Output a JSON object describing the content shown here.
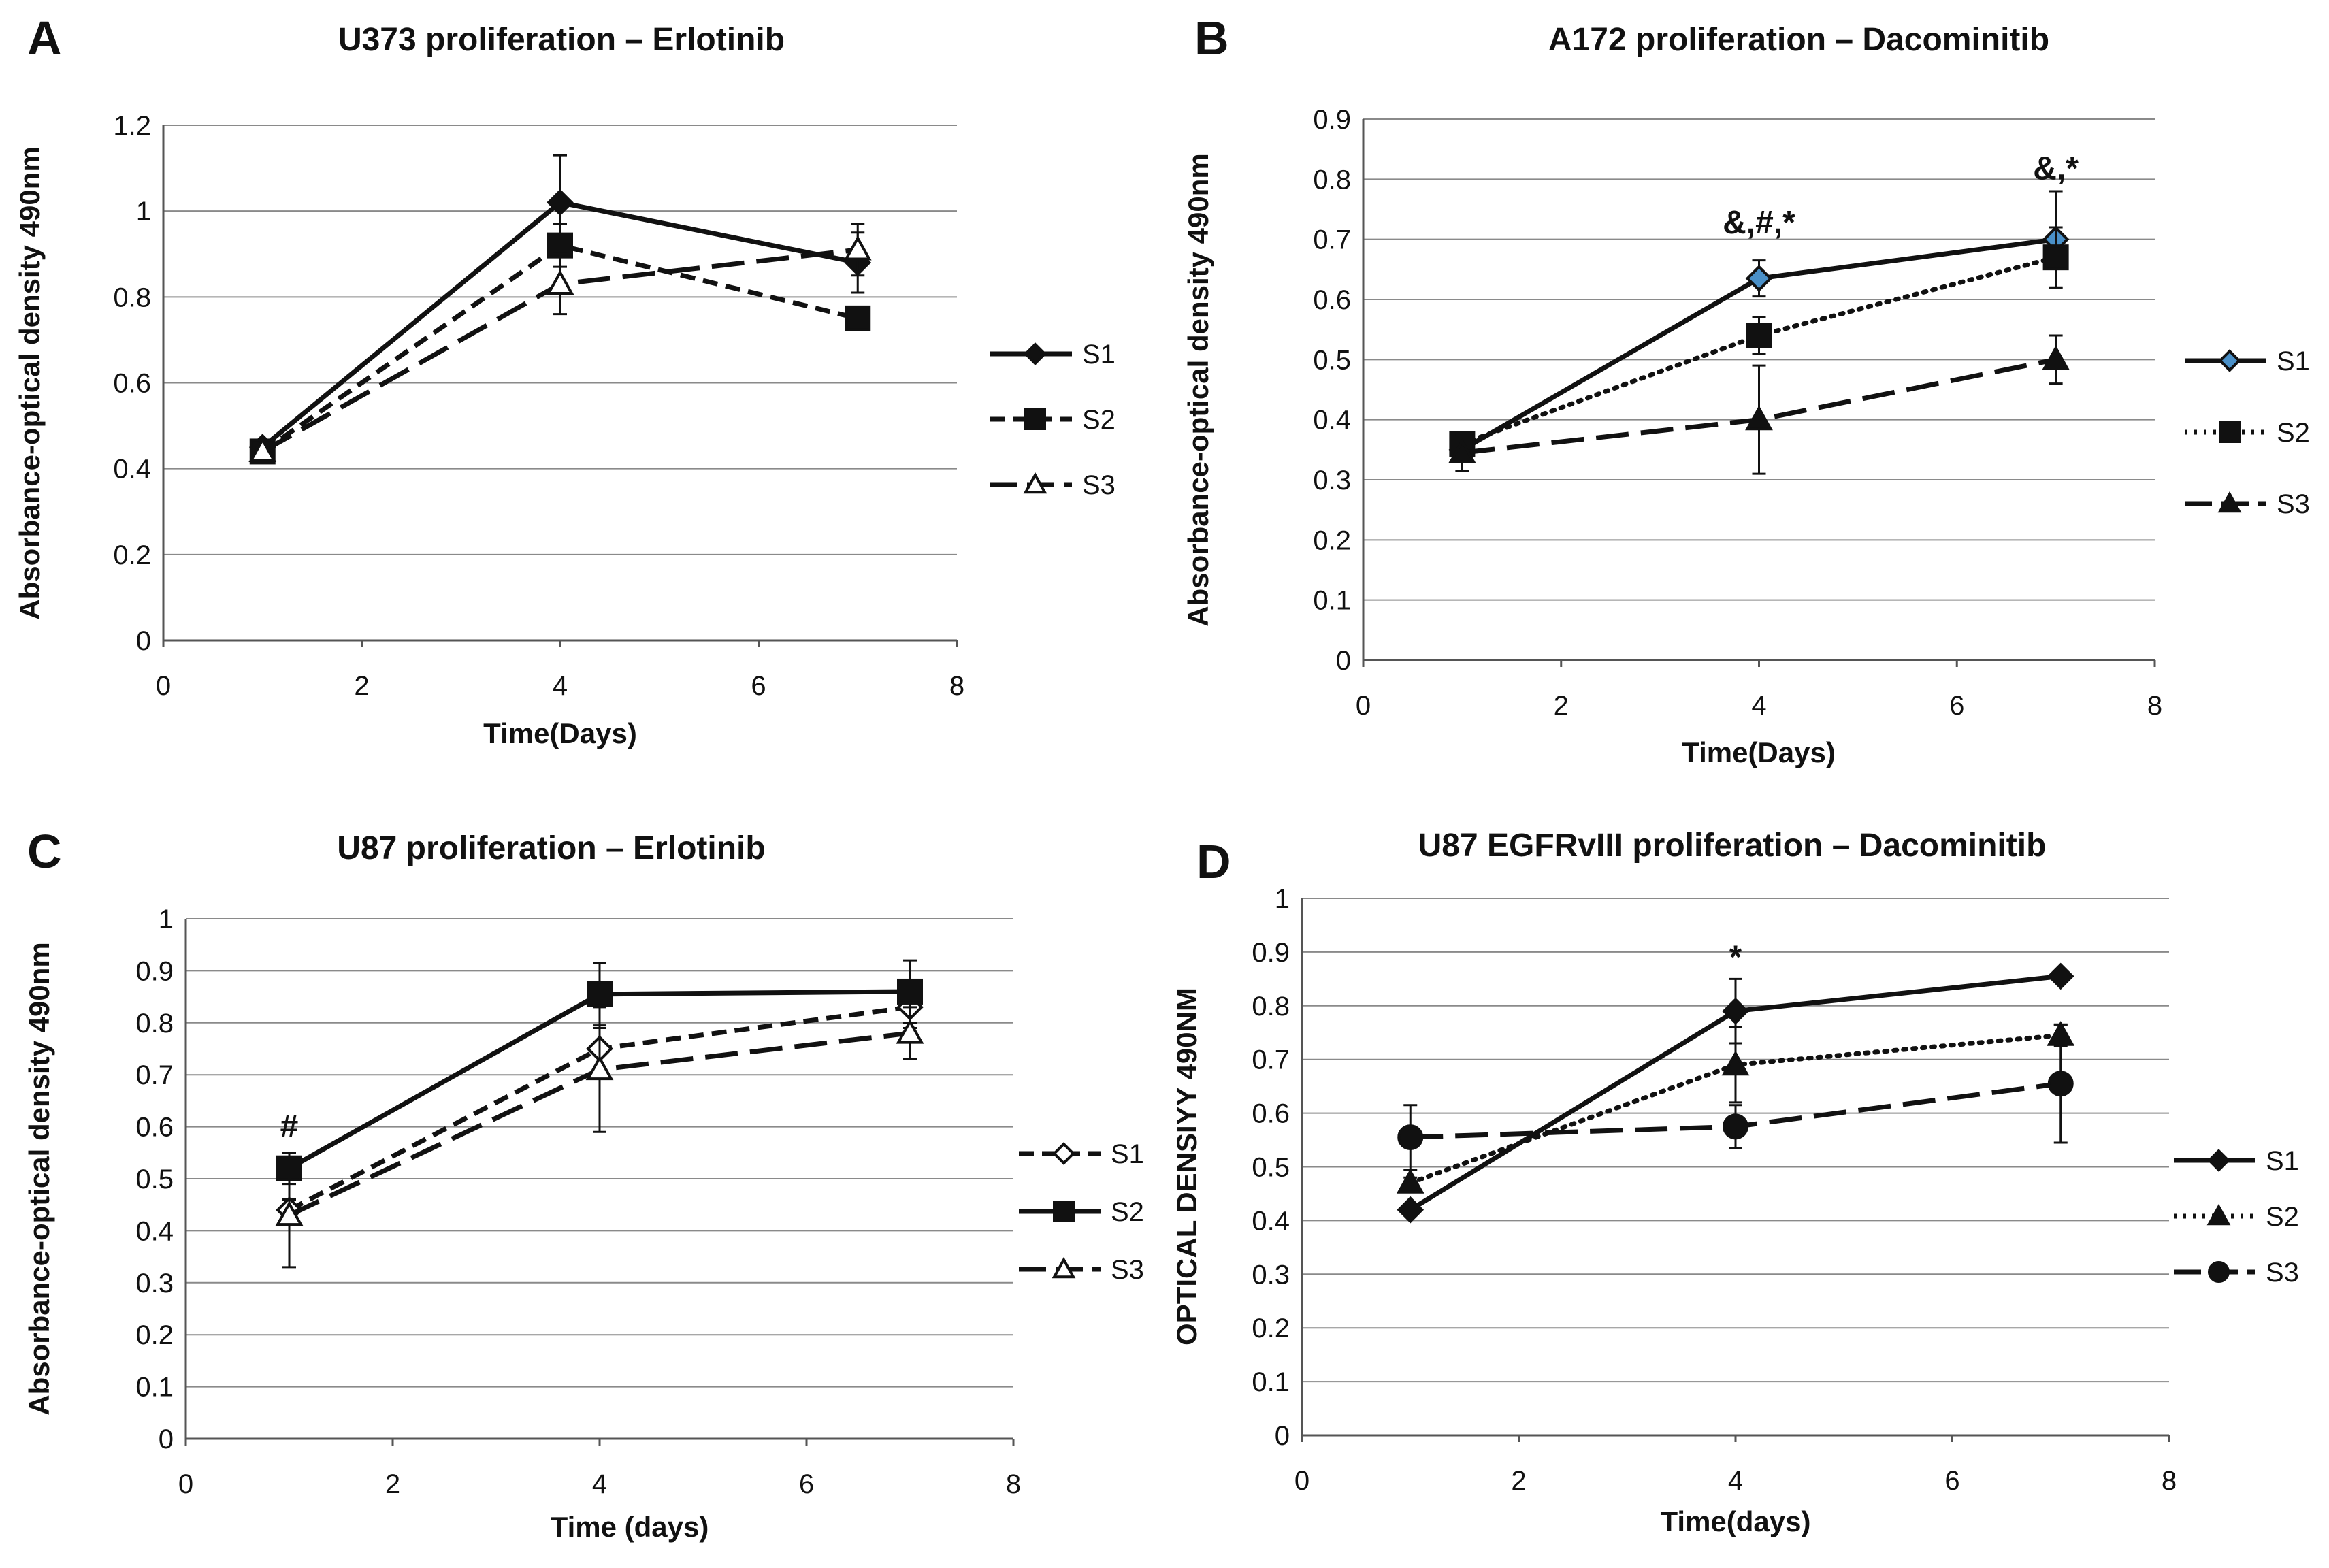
{
  "chart_data": [
    {
      "panel": "A",
      "type": "line",
      "title": "U373 proliferation – Erlotinib",
      "xlabel": "Time(Days)",
      "ylabel": "Absorbance-optical density 490nm",
      "xlim": [
        0,
        8
      ],
      "ylim": [
        0,
        1.2
      ],
      "xticks": [
        "0",
        "2",
        "4",
        "6",
        "8"
      ],
      "yticks": [
        "0",
        "0.2",
        "0.4",
        "0.6",
        "0.8",
        "1",
        "1.2"
      ],
      "grid": "horizontal",
      "legend_position": "right",
      "x": [
        1,
        4,
        7
      ],
      "series": [
        {
          "name": "S1",
          "values": [
            0.45,
            1.02,
            0.88
          ],
          "err": [
            0.01,
            0.11,
            0.07
          ],
          "line": "solid",
          "marker": "diamond",
          "fill": "#111111"
        },
        {
          "name": "S2",
          "values": [
            0.44,
            0.92,
            0.75
          ],
          "err": [
            0.01,
            0.05,
            0.02
          ],
          "line": "dashed",
          "marker": "square",
          "fill": "#111111"
        },
        {
          "name": "S3",
          "values": [
            0.44,
            0.83,
            0.91
          ],
          "err": [
            0.01,
            0.07,
            0.06
          ],
          "line": "longdash",
          "marker": "triangle",
          "fill": "#ffffff"
        }
      ],
      "annotations": []
    },
    {
      "panel": "B",
      "type": "line",
      "title": "A172 proliferation – Dacominitib",
      "xlabel": "Time(Days)",
      "ylabel": "Absorbance-optical density 490nm",
      "xlim": [
        0,
        8
      ],
      "ylim": [
        0,
        0.9
      ],
      "xticks": [
        "0",
        "2",
        "4",
        "6",
        "8"
      ],
      "yticks": [
        "0",
        "0.1",
        "0.2",
        "0.3",
        "0.4",
        "0.5",
        "0.6",
        "0.7",
        "0.8",
        "0.9"
      ],
      "grid": "horizontal",
      "legend_position": "right",
      "x": [
        1,
        4,
        7
      ],
      "series": [
        {
          "name": "S1",
          "values": [
            0.35,
            0.635,
            0.7
          ],
          "err": [
            0.01,
            0.03,
            0.08
          ],
          "line": "solid",
          "marker": "diamond",
          "fill": "#4a90c8"
        },
        {
          "name": "S2",
          "values": [
            0.36,
            0.54,
            0.67
          ],
          "err": [
            0.01,
            0.03,
            0.05
          ],
          "line": "dotted",
          "marker": "square",
          "fill": "#111111"
        },
        {
          "name": "S3",
          "values": [
            0.345,
            0.4,
            0.5
          ],
          "err": [
            0.03,
            0.09,
            0.04
          ],
          "line": "longdash",
          "marker": "triangle",
          "fill": "#111111"
        }
      ],
      "annotations": [
        {
          "text": "&,#,*",
          "x": 4,
          "y": 0.71
        },
        {
          "text": "&,*",
          "x": 7,
          "y": 0.8
        }
      ]
    },
    {
      "panel": "C",
      "type": "line",
      "title": "U87 proliferation – Erlotinib",
      "xlabel": "Time (days)",
      "ylabel": "Absorbance-optical density 490nm",
      "xlim": [
        0,
        8
      ],
      "ylim": [
        0,
        1
      ],
      "xticks": [
        "0",
        "2",
        "4",
        "6",
        "8"
      ],
      "yticks": [
        "0",
        "0.1",
        "0.2",
        "0.3",
        "0.4",
        "0.5",
        "0.6",
        "0.7",
        "0.8",
        "0.9",
        "1"
      ],
      "grid": "horizontal",
      "legend_position": "right",
      "x": [
        1,
        4,
        7
      ],
      "series": [
        {
          "name": "S1",
          "values": [
            0.44,
            0.75,
            0.83
          ],
          "err": [
            0.02,
            0.04,
            0.04
          ],
          "line": "dashed",
          "marker": "diamond",
          "fill": "#ffffff"
        },
        {
          "name": "S2",
          "values": [
            0.52,
            0.855,
            0.86
          ],
          "err": [
            0.03,
            0.06,
            0.06
          ],
          "line": "solid",
          "marker": "square",
          "fill": "#111111"
        },
        {
          "name": "S3",
          "values": [
            0.43,
            0.71,
            0.78
          ],
          "err": [
            0.1,
            0.12,
            0.05
          ],
          "line": "longdash",
          "marker": "triangle",
          "fill": "#ffffff"
        }
      ],
      "annotations": [
        {
          "text": "#",
          "x": 1,
          "y": 0.58
        }
      ]
    },
    {
      "panel": "D",
      "type": "line",
      "title": "U87 EGFRvIII proliferation – Dacominitib",
      "xlabel": "Time(days)",
      "ylabel": "OPTICAL DENSIYY 490NM",
      "xlim": [
        0,
        8
      ],
      "ylim": [
        0,
        1
      ],
      "xticks": [
        "0",
        "2",
        "4",
        "6",
        "8"
      ],
      "yticks": [
        "0",
        "0.1",
        "0.2",
        "0.3",
        "0.4",
        "0.5",
        "0.6",
        "0.7",
        "0.8",
        "0.9",
        "1"
      ],
      "grid": "horizontal",
      "legend_position": "right",
      "x": [
        1,
        4,
        7
      ],
      "series": [
        {
          "name": "S1",
          "values": [
            0.42,
            0.79,
            0.855
          ],
          "err": [
            0.01,
            0.06,
            0.01
          ],
          "line": "solid",
          "marker": "diamond",
          "fill": "#111111"
        },
        {
          "name": "S2",
          "values": [
            0.47,
            0.69,
            0.745
          ],
          "err": [
            0.01,
            0.07,
            0.02
          ],
          "line": "dotted",
          "marker": "triangle",
          "fill": "#111111"
        },
        {
          "name": "S3",
          "values": [
            0.555,
            0.575,
            0.655
          ],
          "err": [
            0.06,
            0.04,
            0.11
          ],
          "line": "longdash",
          "marker": "circle",
          "fill": "#111111"
        }
      ],
      "annotations": [
        {
          "text": "*",
          "x": 4,
          "y": 0.87
        }
      ]
    }
  ]
}
